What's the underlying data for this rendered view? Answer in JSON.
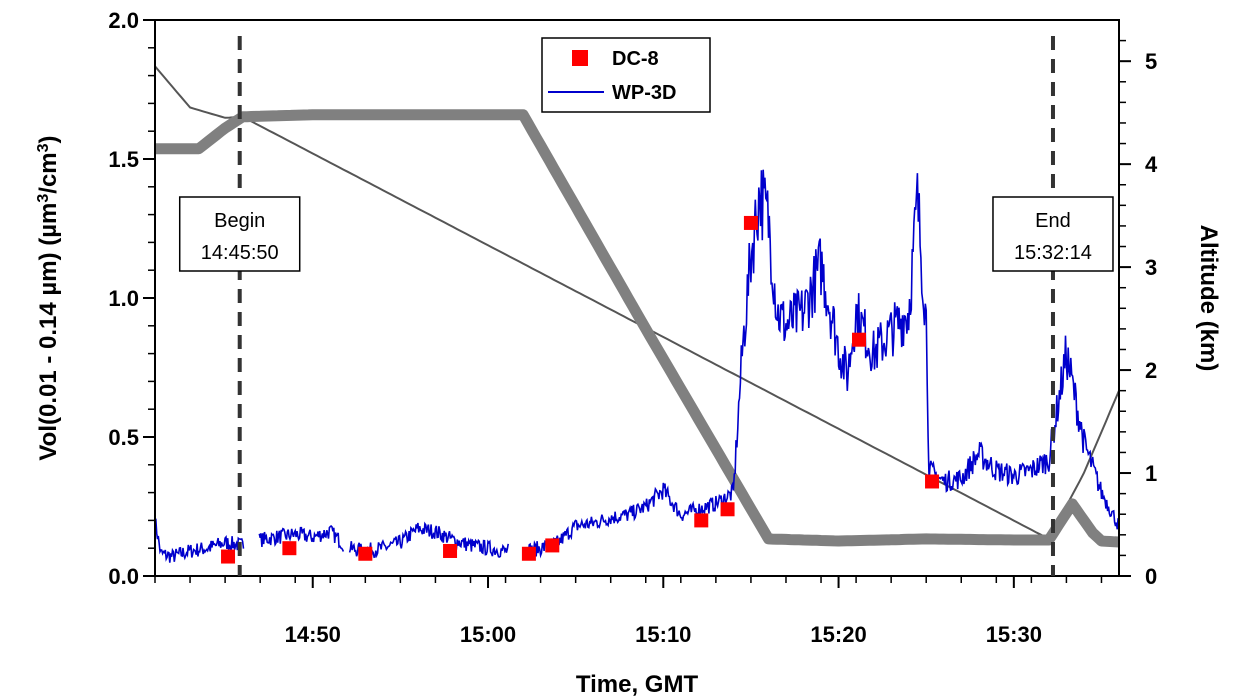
{
  "chart_data": {
    "type": "line",
    "title": "",
    "xlabel": "Time, GMT",
    "ylabel_left": "Vol(0.01 - 0.14 µm)  (µm³/cm³)",
    "ylabel_left_parts": {
      "pre": "Vol(0.01 - 0.14 µm)  (µm",
      "sup1": "3",
      "mid": "/cm",
      "sup2": "3",
      "post": ")"
    },
    "ylabel_right": "Altitude  (km)",
    "xlim_minutes": [
      -19,
      96
    ],
    "x_ticks": [
      {
        "minutes": 0,
        "label": "14:50"
      },
      {
        "minutes": 10,
        "label": "15:00"
      },
      {
        "minutes": 20,
        "label": "15:10"
      },
      {
        "minutes": 30,
        "label": "15:20"
      },
      {
        "minutes": 40,
        "label": "15:30"
      }
    ],
    "xlim": [
      "14:41:00",
      "15:36:00"
    ],
    "ylim_left": [
      0,
      2.0
    ],
    "left_ticks": [
      "0.0",
      "0.5",
      "1.0",
      "1.5",
      "2.0"
    ],
    "ylim_right": [
      0,
      5.4
    ],
    "right_ticks": [
      "0",
      "1",
      "2",
      "3",
      "4",
      "5"
    ],
    "legend": {
      "placement": "top-center",
      "entries": [
        {
          "name": "DC-8",
          "color": "#ff0000",
          "marker": "square"
        },
        {
          "name": "WP-3D",
          "color": "#0000cc",
          "marker": "line"
        }
      ]
    },
    "annotations": [
      {
        "label": "Begin",
        "time": "14:45:50"
      },
      {
        "label": "End",
        "time": "15:32:14"
      }
    ],
    "series": [
      {
        "name": "DC-8",
        "axis": "left",
        "kind": "scatter",
        "color": "#ff0000",
        "points": [
          [
            "14:45:10",
            0.07
          ],
          [
            "14:48:40",
            0.1
          ],
          [
            "14:53:00",
            0.08
          ],
          [
            "14:57:50",
            0.09
          ],
          [
            "15:02:20",
            0.08
          ],
          [
            "15:03:40",
            0.11
          ],
          [
            "15:12:10",
            0.2
          ],
          [
            "15:13:40",
            0.24
          ],
          [
            "15:15:00",
            1.27
          ],
          [
            "15:21:10",
            0.85
          ],
          [
            "15:25:20",
            0.34
          ]
        ]
      },
      {
        "name": "WP-3D",
        "axis": "left",
        "kind": "line",
        "color": "#0000cc",
        "points": [
          [
            "14:41:00",
            0.2
          ],
          [
            "14:41:20",
            0.08
          ],
          [
            "14:42:00",
            0.07
          ],
          [
            "14:43:00",
            0.09
          ],
          [
            "14:44:00",
            0.1
          ],
          [
            "14:45:00",
            0.12
          ],
          [
            "14:46:00",
            0.11
          ],
          [
            "14:47:00",
            0.13
          ],
          [
            "14:48:00",
            0.14
          ],
          [
            "14:49:00",
            0.15
          ],
          [
            "14:50:00",
            0.14
          ],
          [
            "14:51:00",
            0.16
          ],
          [
            "14:52:00",
            0.1
          ],
          [
            "14:53:00",
            0.09
          ],
          [
            "14:54:00",
            0.1
          ],
          [
            "14:55:00",
            0.12
          ],
          [
            "14:56:00",
            0.17
          ],
          [
            "14:57:00",
            0.16
          ],
          [
            "14:58:00",
            0.13
          ],
          [
            "14:59:00",
            0.11
          ],
          [
            "15:00:00",
            0.1
          ],
          [
            "15:01:00",
            0.09
          ],
          [
            "15:02:00",
            0.09
          ],
          [
            "15:03:00",
            0.1
          ],
          [
            "15:04:00",
            0.12
          ],
          [
            "15:05:00",
            0.18
          ],
          [
            "15:06:00",
            0.19
          ],
          [
            "15:07:00",
            0.21
          ],
          [
            "15:08:00",
            0.22
          ],
          [
            "15:09:00",
            0.25
          ],
          [
            "15:10:00",
            0.31
          ],
          [
            "15:11:00",
            0.22
          ],
          [
            "15:12:00",
            0.24
          ],
          [
            "15:13:00",
            0.26
          ],
          [
            "15:14:00",
            0.3
          ],
          [
            "15:14:30",
            0.8
          ],
          [
            "15:15:00",
            1.15
          ],
          [
            "15:15:30",
            1.38
          ],
          [
            "15:16:00",
            1.28
          ],
          [
            "15:16:30",
            0.95
          ],
          [
            "15:17:00",
            0.9
          ],
          [
            "15:18:00",
            0.95
          ],
          [
            "15:19:00",
            1.12
          ],
          [
            "15:20:00",
            0.82
          ],
          [
            "15:20:30",
            0.72
          ],
          [
            "15:21:00",
            0.95
          ],
          [
            "15:22:00",
            0.8
          ],
          [
            "15:23:00",
            0.88
          ],
          [
            "15:24:00",
            0.95
          ],
          [
            "15:24:30",
            1.35
          ],
          [
            "15:25:00",
            0.92
          ],
          [
            "15:25:10",
            0.38
          ],
          [
            "15:26:00",
            0.34
          ],
          [
            "15:27:00",
            0.35
          ],
          [
            "15:28:00",
            0.44
          ],
          [
            "15:29:00",
            0.38
          ],
          [
            "15:30:00",
            0.36
          ],
          [
            "15:31:00",
            0.38
          ],
          [
            "15:32:00",
            0.42
          ],
          [
            "15:33:00",
            0.8
          ],
          [
            "15:34:00",
            0.48
          ],
          [
            "15:35:00",
            0.3
          ],
          [
            "15:36:00",
            0.18
          ]
        ]
      },
      {
        "name": "DC-8 altitude",
        "axis": "right",
        "kind": "line",
        "color": "#808080",
        "points": [
          [
            "14:41:00",
            4.15
          ],
          [
            "14:43:30",
            4.15
          ],
          [
            "14:45:00",
            4.35
          ],
          [
            "14:46:00",
            4.46
          ],
          [
            "14:50:00",
            4.48
          ],
          [
            "15:00:00",
            4.48
          ],
          [
            "15:02:00",
            4.48
          ],
          [
            "15:09:00",
            2.4
          ],
          [
            "15:16:00",
            0.36
          ],
          [
            "15:20:00",
            0.34
          ],
          [
            "15:25:00",
            0.36
          ],
          [
            "15:30:00",
            0.35
          ],
          [
            "15:32:00",
            0.35
          ],
          [
            "15:33:20",
            0.7
          ],
          [
            "15:34:30",
            0.42
          ],
          [
            "15:35:00",
            0.34
          ],
          [
            "15:36:00",
            0.33
          ]
        ]
      },
      {
        "name": "WP-3D altitude",
        "axis": "right",
        "kind": "line",
        "color": "#555555",
        "points": [
          [
            "14:41:00",
            4.95
          ],
          [
            "14:43:00",
            4.55
          ],
          [
            "14:45:00",
            4.45
          ],
          [
            "14:46:00",
            4.46
          ],
          [
            "15:32:00",
            0.36
          ],
          [
            "15:34:00",
            1.0
          ],
          [
            "15:36:00",
            1.8
          ]
        ]
      }
    ]
  }
}
